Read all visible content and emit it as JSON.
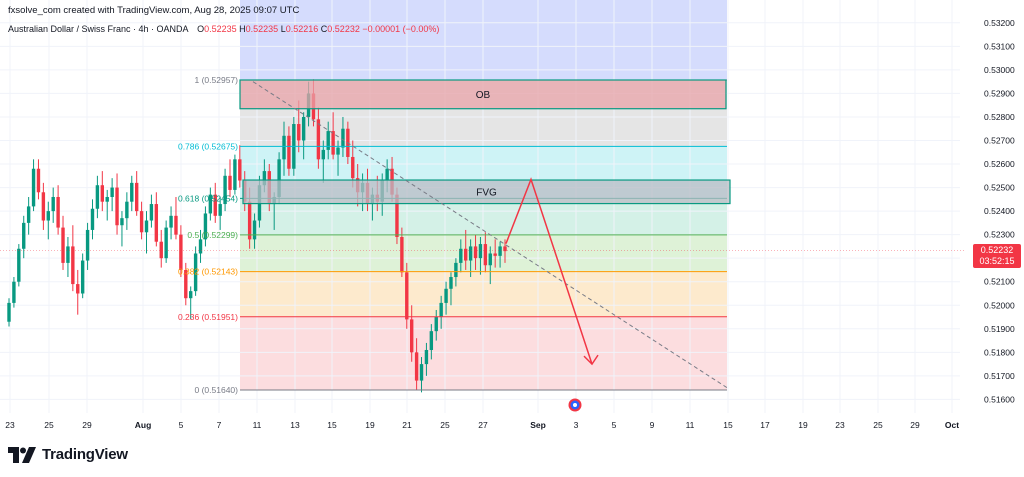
{
  "header": {
    "created_by": "fxsolve_com created with TradingView.com, Aug 28, 2025 09:07 UTC"
  },
  "quote": {
    "symbol": "Australian Dollar / Swiss Franc · 4h · OANDA",
    "o_label": "O",
    "o_value": "0.52235",
    "h_label": "H",
    "h_value": "0.52235",
    "l_label": "L",
    "l_value": "0.52216",
    "c_label": "C",
    "c_value": "0.52232",
    "change": "−0.00001 (−0.00%)"
  },
  "last_price": {
    "value": "0.52232",
    "countdown": "03:52:15"
  },
  "brand": {
    "name": "TradingView"
  },
  "colors": {
    "up": "#089981",
    "down": "#f23645",
    "arrow": "#f23645"
  },
  "chart_data": {
    "type": "candlestick",
    "y_axis": {
      "range": [
        0.5155,
        0.5323
      ],
      "ticks": [
        "0.53200",
        "0.53100",
        "0.53000",
        "0.52900",
        "0.52800",
        "0.52700",
        "0.52600",
        "0.52500",
        "0.52400",
        "0.52300",
        "0.52200",
        "0.52100",
        "0.52000",
        "0.51900",
        "0.51800",
        "0.51700",
        "0.51600"
      ]
    },
    "x_axis": {
      "ticks": [
        "23",
        "25",
        "29",
        "Aug",
        "5",
        "7",
        "11",
        "13",
        "15",
        "19",
        "21",
        "25",
        "27",
        "Sep",
        "3",
        "5",
        "9",
        "11",
        "15",
        "17",
        "19",
        "23",
        "25",
        "29",
        "Oct"
      ]
    },
    "fib_levels": [
      {
        "label": "1 (0.52957)",
        "price": 0.52957
      },
      {
        "label": "0.786 (0.52675)",
        "price": 0.52675
      },
      {
        "label": "0.618 (0.52454)",
        "price": 0.52454
      },
      {
        "label": "0.5 (0.52299)",
        "price": 0.52299
      },
      {
        "label": "0.382 (0.52143)",
        "price": 0.52143
      },
      {
        "label": "0.236 (0.51951)",
        "price": 0.51951
      },
      {
        "label": "0 (0.51640)",
        "price": 0.5164
      }
    ],
    "zones": [
      {
        "label": "OB",
        "top": 0.52957,
        "bottom": 0.52835
      },
      {
        "label": "FVG",
        "top": 0.52532,
        "bottom": 0.52432
      }
    ],
    "trendline": {
      "start_price": 0.5295,
      "end_price": 0.5165
    },
    "projection": {
      "prices": [
        0.52262,
        0.52535,
        0.5175
      ]
    },
    "candles": [
      [
        0.5193,
        0.5203,
        0.5191,
        0.5201
      ],
      [
        0.5201,
        0.5212,
        0.5199,
        0.521
      ],
      [
        0.521,
        0.5226,
        0.5208,
        0.5224
      ],
      [
        0.5224,
        0.5238,
        0.522,
        0.5235
      ],
      [
        0.5235,
        0.5246,
        0.523,
        0.5242
      ],
      [
        0.5242,
        0.5262,
        0.524,
        0.5258
      ],
      [
        0.5258,
        0.5262,
        0.5245,
        0.5248
      ],
      [
        0.5248,
        0.5252,
        0.5232,
        0.5236
      ],
      [
        0.5236,
        0.5244,
        0.5228,
        0.524
      ],
      [
        0.524,
        0.525,
        0.5235,
        0.5246
      ],
      [
        0.5246,
        0.5251,
        0.523,
        0.5233
      ],
      [
        0.5233,
        0.5238,
        0.5215,
        0.5218
      ],
      [
        0.5218,
        0.5229,
        0.5212,
        0.5225
      ],
      [
        0.5225,
        0.5234,
        0.5206,
        0.5209
      ],
      [
        0.5209,
        0.5215,
        0.5196,
        0.5205
      ],
      [
        0.5205,
        0.5222,
        0.5203,
        0.5219
      ],
      [
        0.5219,
        0.5235,
        0.5215,
        0.5232
      ],
      [
        0.5232,
        0.5245,
        0.5228,
        0.5241
      ],
      [
        0.5241,
        0.5255,
        0.5237,
        0.5251
      ],
      [
        0.5251,
        0.5257,
        0.524,
        0.5244
      ],
      [
        0.5244,
        0.5249,
        0.5236,
        0.5246
      ],
      [
        0.5246,
        0.5254,
        0.524,
        0.525
      ],
      [
        0.525,
        0.5256,
        0.523,
        0.5234
      ],
      [
        0.5234,
        0.524,
        0.5225,
        0.5237
      ],
      [
        0.5237,
        0.5248,
        0.5232,
        0.5244
      ],
      [
        0.5244,
        0.5255,
        0.524,
        0.5252
      ],
      [
        0.5252,
        0.5257,
        0.5238,
        0.524
      ],
      [
        0.524,
        0.5244,
        0.5228,
        0.5231
      ],
      [
        0.5231,
        0.524,
        0.5222,
        0.5236
      ],
      [
        0.5236,
        0.5247,
        0.5233,
        0.5243
      ],
      [
        0.5243,
        0.5248,
        0.5225,
        0.5227
      ],
      [
        0.5227,
        0.5232,
        0.5216,
        0.522
      ],
      [
        0.522,
        0.5236,
        0.5218,
        0.5233
      ],
      [
        0.5233,
        0.5242,
        0.5228,
        0.5238
      ],
      [
        0.5238,
        0.5246,
        0.5228,
        0.523
      ],
      [
        0.523,
        0.5234,
        0.5212,
        0.5215
      ],
      [
        0.5215,
        0.5218,
        0.52,
        0.5203
      ],
      [
        0.5203,
        0.5208,
        0.5194,
        0.5206
      ],
      [
        0.5206,
        0.5225,
        0.5204,
        0.5222
      ],
      [
        0.5222,
        0.5232,
        0.5218,
        0.5228
      ],
      [
        0.5228,
        0.5242,
        0.5225,
        0.5239
      ],
      [
        0.5239,
        0.525,
        0.5236,
        0.5247
      ],
      [
        0.5247,
        0.5252,
        0.5235,
        0.5238
      ],
      [
        0.5238,
        0.5246,
        0.5232,
        0.5243
      ],
      [
        0.5243,
        0.5258,
        0.524,
        0.5255
      ],
      [
        0.5255,
        0.5262,
        0.5246,
        0.5249
      ],
      [
        0.5249,
        0.5264,
        0.5247,
        0.5262
      ],
      [
        0.5262,
        0.5268,
        0.525,
        0.5253
      ],
      [
        0.5253,
        0.5257,
        0.524,
        0.5244
      ],
      [
        0.5244,
        0.525,
        0.5224,
        0.5228
      ],
      [
        0.5228,
        0.5239,
        0.5224,
        0.5236
      ],
      [
        0.5236,
        0.5255,
        0.5233,
        0.5251
      ],
      [
        0.5251,
        0.5262,
        0.5248,
        0.5257
      ],
      [
        0.5257,
        0.526,
        0.524,
        0.5243
      ],
      [
        0.5243,
        0.5248,
        0.5232,
        0.5246
      ],
      [
        0.5246,
        0.5265,
        0.5243,
        0.5262
      ],
      [
        0.5262,
        0.5278,
        0.5255,
        0.5272
      ],
      [
        0.5272,
        0.5276,
        0.5255,
        0.5258
      ],
      [
        0.5258,
        0.528,
        0.5255,
        0.5277
      ],
      [
        0.5277,
        0.5287,
        0.5265,
        0.527
      ],
      [
        0.527,
        0.5282,
        0.5262,
        0.528
      ],
      [
        0.528,
        0.5295,
        0.5276,
        0.529
      ],
      [
        0.529,
        0.5296,
        0.5276,
        0.5279
      ],
      [
        0.5279,
        0.5284,
        0.5258,
        0.5262
      ],
      [
        0.5262,
        0.527,
        0.5252,
        0.5266
      ],
      [
        0.5266,
        0.5278,
        0.5262,
        0.5274
      ],
      [
        0.5274,
        0.5282,
        0.5262,
        0.5264
      ],
      [
        0.5264,
        0.527,
        0.5255,
        0.5267
      ],
      [
        0.5267,
        0.528,
        0.5263,
        0.5275
      ],
      [
        0.5275,
        0.5278,
        0.526,
        0.5263
      ],
      [
        0.5263,
        0.527,
        0.525,
        0.5254
      ],
      [
        0.5254,
        0.526,
        0.5242,
        0.5248
      ],
      [
        0.5248,
        0.5256,
        0.524,
        0.5252
      ],
      [
        0.5252,
        0.5258,
        0.524,
        0.5243
      ],
      [
        0.5243,
        0.525,
        0.5236,
        0.5247
      ],
      [
        0.5247,
        0.5255,
        0.524,
        0.5244
      ],
      [
        0.5244,
        0.5256,
        0.5238,
        0.5253
      ],
      [
        0.5253,
        0.5262,
        0.5248,
        0.5258
      ],
      [
        0.5258,
        0.5263,
        0.5244,
        0.5247
      ],
      [
        0.5247,
        0.525,
        0.5226,
        0.5229
      ],
      [
        0.5229,
        0.5233,
        0.5212,
        0.5214
      ],
      [
        0.5214,
        0.5218,
        0.519,
        0.5194
      ],
      [
        0.5194,
        0.52,
        0.5176,
        0.518
      ],
      [
        0.518,
        0.5186,
        0.5164,
        0.5168
      ],
      [
        0.5168,
        0.5178,
        0.5163,
        0.5175
      ],
      [
        0.5175,
        0.5184,
        0.517,
        0.5181
      ],
      [
        0.5181,
        0.5192,
        0.5177,
        0.5189
      ],
      [
        0.5189,
        0.5198,
        0.5185,
        0.5195
      ],
      [
        0.5195,
        0.5204,
        0.519,
        0.5201
      ],
      [
        0.5201,
        0.521,
        0.5196,
        0.5207
      ],
      [
        0.5207,
        0.5214,
        0.52,
        0.5212
      ],
      [
        0.5212,
        0.522,
        0.5208,
        0.5218
      ],
      [
        0.5218,
        0.5228,
        0.5214,
        0.5224
      ],
      [
        0.5224,
        0.5232,
        0.5215,
        0.5219
      ],
      [
        0.5219,
        0.5228,
        0.5212,
        0.5225
      ],
      [
        0.5225,
        0.523,
        0.5215,
        0.522
      ],
      [
        0.522,
        0.5229,
        0.5213,
        0.5226
      ],
      [
        0.5226,
        0.5231,
        0.5214,
        0.5217
      ],
      [
        0.5217,
        0.5225,
        0.5209,
        0.5222
      ],
      [
        0.5222,
        0.5228,
        0.5216,
        0.5221
      ],
      [
        0.5221,
        0.5227,
        0.5216,
        0.5225
      ],
      [
        0.5225,
        0.5228,
        0.5218,
        0.5223
      ]
    ]
  }
}
